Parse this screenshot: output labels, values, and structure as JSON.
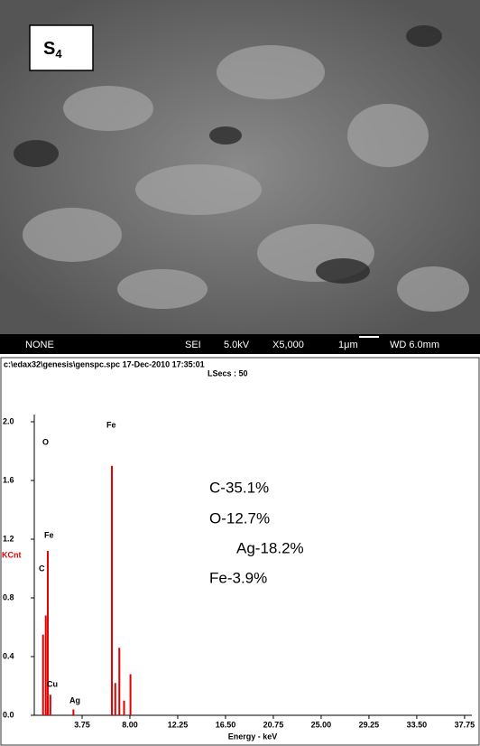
{
  "image_panel": {
    "label": "S",
    "label_subscript": "4",
    "info_bar": [
      "NONE",
      "SEI",
      "5.0kV",
      "X5,000",
      "1μm",
      "WD 6.0mm"
    ]
  },
  "chart_data": {
    "type": "spectrum",
    "header": "c:\\edax32\\genesis\\genspc.spc  17-Dec-2010 17:35:01",
    "subheader": "LSecs :  50",
    "ylabel": "KCnt",
    "xlabel": "Energy - keV",
    "x": [
      0.28,
      0.52,
      0.7,
      0.93,
      2.98,
      6.4,
      6.7,
      7.06,
      7.48,
      8.05
    ],
    "values": [
      0.55,
      0.68,
      1.12,
      0.14,
      0.04,
      1.7,
      0.22,
      0.46,
      0.1,
      0.28
    ],
    "color": "#e00000",
    "xlim": [
      -0.5,
      38.4
    ],
    "ylim": [
      0,
      2.0
    ],
    "xticks": [
      3.75,
      {
        "value": 8,
        "label": "8.00"
      },
      12.25,
      {
        "value": 16.5,
        "label": "16.50"
      },
      20.75,
      {
        "value": 25,
        "label": "25.00"
      },
      29.25,
      {
        "value": 33.5,
        "label": "33.50"
      },
      37.75
    ],
    "yticks": [
      {
        "value": 0,
        "label": "0.0"
      },
      0.4,
      0.8,
      1.2,
      1.6,
      {
        "value": 2,
        "label": "2.0"
      }
    ],
    "peak_labels": [
      "Fe",
      "O",
      "Fe",
      "C",
      "Cu",
      "Ag"
    ],
    "annotations": [
      "C-35.1%",
      "O-12.7%",
      "Ag-18.2%",
      "Fe-3.9%"
    ]
  }
}
